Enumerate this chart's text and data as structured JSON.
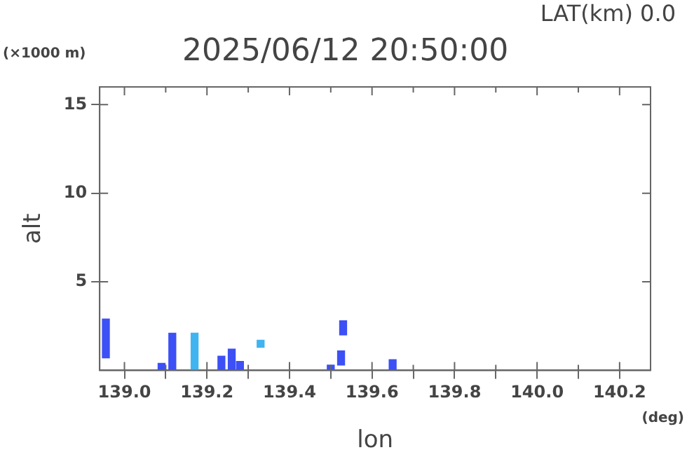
{
  "chart_data": {
    "type": "bar",
    "title": "2025/06/12 20:50:00",
    "subtitle": "LAT(km) 0.0",
    "xlabel": "lon",
    "ylabel": "alt",
    "annotations": [
      "(×1000 m)",
      "(deg)"
    ],
    "x": [
      138.955,
      139.09,
      139.116,
      139.17,
      139.235,
      139.26,
      139.28,
      139.33,
      139.5,
      139.525,
      139.53,
      139.65
    ],
    "base": [
      0.7,
      0,
      0,
      0,
      0,
      0,
      0,
      1.3,
      0,
      0.3,
      2.0,
      0
    ],
    "values": [
      2.2,
      0.4,
      2.1,
      2.1,
      0.8,
      1.2,
      0.5,
      0.4,
      0.3,
      0.8,
      0.8,
      0.6
    ],
    "colors": [
      "#3c50f5",
      "#3c50f5",
      "#3c50f5",
      "#40b4f0",
      "#3c50f5",
      "#3c50f5",
      "#3c50f5",
      "#40b4f0",
      "#3c50f5",
      "#3c50f5",
      "#3c50f5",
      "#3c50f5"
    ],
    "xlim": [
      138.94,
      140.275
    ],
    "ylim": [
      0,
      16
    ],
    "xticks": [
      {
        "value": 139.0,
        "label": "139.0"
      },
      {
        "value": 139.1,
        "label": null
      },
      {
        "value": 139.2,
        "label": "139.2"
      },
      {
        "value": 139.3,
        "label": null
      },
      {
        "value": 139.4,
        "label": "139.4"
      },
      {
        "value": 139.5,
        "label": null
      },
      {
        "value": 139.6,
        "label": "139.6"
      },
      {
        "value": 139.7,
        "label": null
      },
      {
        "value": 139.8,
        "label": "139.8"
      },
      {
        "value": 139.9,
        "label": null
      },
      {
        "value": 140.0,
        "label": "140.0"
      },
      {
        "value": 140.1,
        "label": null
      },
      {
        "value": 140.2,
        "label": "140.2"
      }
    ],
    "yticks": [
      5,
      10,
      15
    ],
    "grid": false,
    "legend": false
  }
}
